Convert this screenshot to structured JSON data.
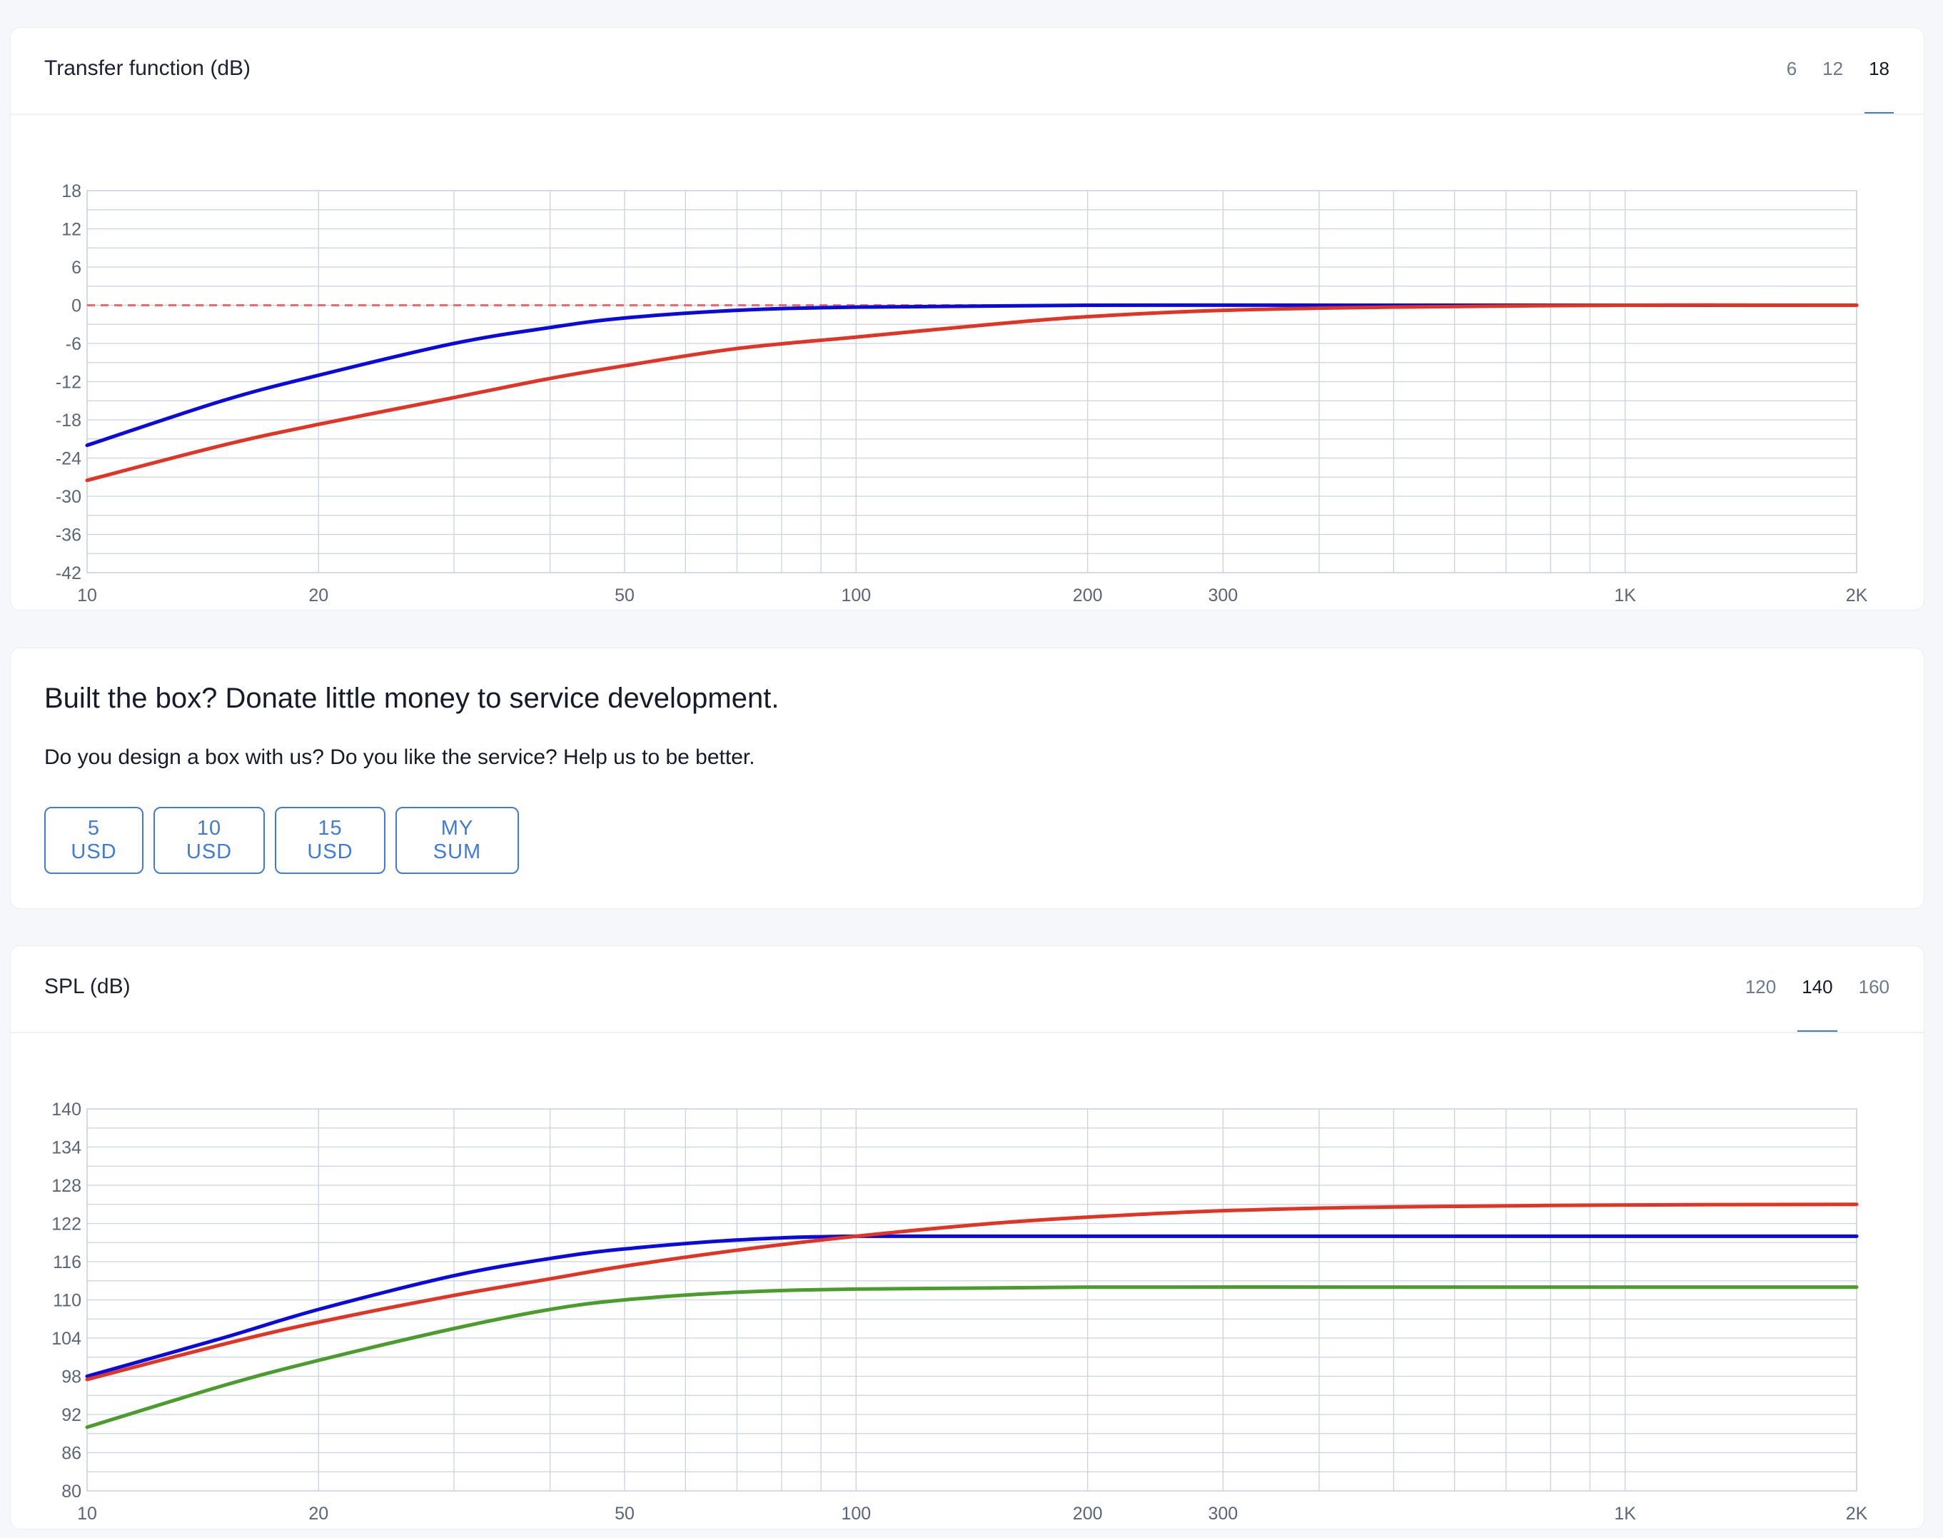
{
  "transfer": {
    "title": "Transfer function (dB)",
    "tabs": [
      {
        "label": "6",
        "active": false
      },
      {
        "label": "12",
        "active": false
      },
      {
        "label": "18",
        "active": true
      }
    ]
  },
  "donate": {
    "title": "Built the box? Donate little money to service development.",
    "text": "Do you design a box with us? Do you like the service? Help us to be better.",
    "buttons": [
      "5 USD",
      "10 USD",
      "15 USD",
      "MY SUM"
    ]
  },
  "spl": {
    "title": "SPL (dB)",
    "tabs": [
      {
        "label": "120",
        "active": false
      },
      {
        "label": "140",
        "active": true
      },
      {
        "label": "160",
        "active": false
      }
    ]
  },
  "colors": {
    "blue": "#0a0adc",
    "red": "#e03524",
    "green": "#4a9d2c",
    "grid": "#c9d3e3",
    "reference": "#f06a6a",
    "accent": "#3f7ae0"
  },
  "chart_data": [
    {
      "type": "line",
      "x_scale": "log",
      "xlim": [
        10,
        2000
      ],
      "ylim": [
        -42,
        18
      ],
      "x_ticks": [
        10,
        20,
        50,
        100,
        200,
        300,
        1000,
        2000
      ],
      "x_tick_labels": [
        "10",
        "20",
        "50",
        "100",
        "200",
        "300",
        "1K",
        "2K"
      ],
      "y_ticks": [
        18,
        12,
        6,
        0,
        -6,
        -12,
        -18,
        -24,
        -30,
        -36,
        -42
      ],
      "y_tick_labels": [
        "18",
        "12",
        "6",
        "0",
        "-6",
        "-12",
        "-18",
        "-24",
        "-30",
        "-36",
        "-42"
      ],
      "grid": true,
      "reference_line": 0,
      "series": [
        {
          "color": "blue",
          "x": [
            10,
            15,
            20,
            30,
            40,
            50,
            70,
            100,
            200,
            500,
            1000,
            2000
          ],
          "y": [
            -22,
            -15,
            -11,
            -6,
            -3.5,
            -2,
            -0.8,
            -0.3,
            0,
            0,
            0,
            0
          ]
        },
        {
          "color": "red",
          "x": [
            10,
            15,
            20,
            30,
            40,
            50,
            70,
            100,
            150,
            200,
            300,
            500,
            1000,
            2000
          ],
          "y": [
            -27.5,
            -22,
            -18.7,
            -14.5,
            -11.5,
            -9.5,
            -6.8,
            -5,
            -3,
            -1.8,
            -0.8,
            -0.3,
            0,
            0
          ]
        }
      ]
    },
    {
      "type": "line",
      "x_scale": "log",
      "xlim": [
        10,
        2000
      ],
      "ylim": [
        80,
        140
      ],
      "x_ticks": [
        10,
        20,
        50,
        100,
        200,
        300,
        1000,
        2000
      ],
      "x_tick_labels": [
        "10",
        "20",
        "50",
        "100",
        "200",
        "300",
        "1K",
        "2K"
      ],
      "y_ticks": [
        140,
        134,
        128,
        122,
        116,
        110,
        104,
        98,
        92,
        86,
        80
      ],
      "y_tick_labels": [
        "140",
        "134",
        "128",
        "122",
        "116",
        "110",
        "104",
        "98",
        "92",
        "86",
        "80"
      ],
      "grid": true,
      "series": [
        {
          "color": "blue",
          "x": [
            10,
            15,
            20,
            30,
            40,
            50,
            70,
            100,
            200,
            500,
            1000,
            2000
          ],
          "y": [
            98,
            104,
            108.5,
            113.8,
            116.5,
            118,
            119.4,
            120,
            120,
            120,
            120,
            120
          ]
        },
        {
          "color": "red",
          "x": [
            10,
            15,
            20,
            30,
            40,
            50,
            70,
            100,
            150,
            200,
            300,
            500,
            1000,
            2000
          ],
          "y": [
            97.5,
            103,
            106.5,
            110.7,
            113.3,
            115.3,
            117.8,
            120,
            122,
            123,
            124,
            124.6,
            124.9,
            125
          ]
        },
        {
          "color": "green",
          "x": [
            10,
            15,
            20,
            30,
            40,
            50,
            70,
            100,
            200,
            500,
            1000,
            2000
          ],
          "y": [
            90,
            96.5,
            100.5,
            105.5,
            108.5,
            110,
            111.2,
            111.7,
            112,
            112,
            112,
            112
          ]
        }
      ]
    }
  ]
}
